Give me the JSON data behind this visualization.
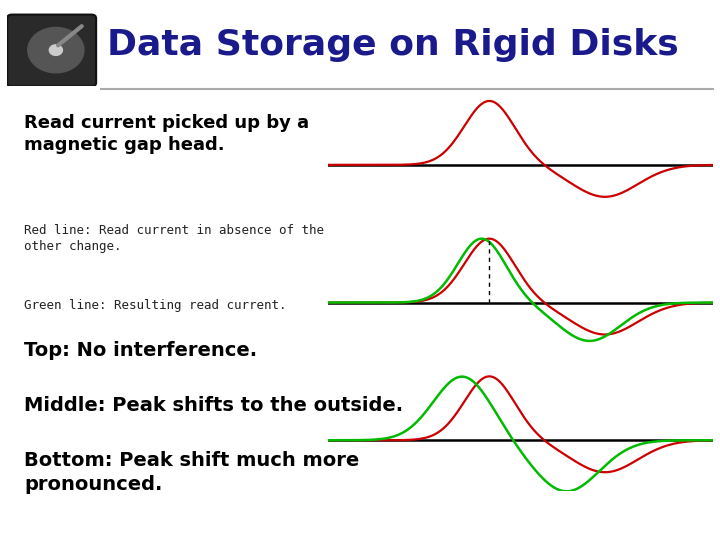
{
  "title": "Data Storage on Rigid Disks",
  "title_color": "#1a1a8c",
  "bg_color": "#ffffff",
  "text1": "Read current picked up by a\nmagnetic gap head.",
  "text2": "Red line: Read current in absence of the\nother change.",
  "text3": "Green line: Resulting read current.",
  "label_top": "Top: No interference.",
  "label_mid": "Middle: Peak shifts to the outside.",
  "label_bot": "Bottom: Peak shift much more\npronounced.",
  "red_color": "#cc0000",
  "green_color": "#00bb00",
  "black_color": "#000000",
  "sep_color": "#aaaaaa",
  "text1_size": 13,
  "text2_size": 9,
  "text3_size": 9,
  "label_size": 14,
  "title_size": 26
}
